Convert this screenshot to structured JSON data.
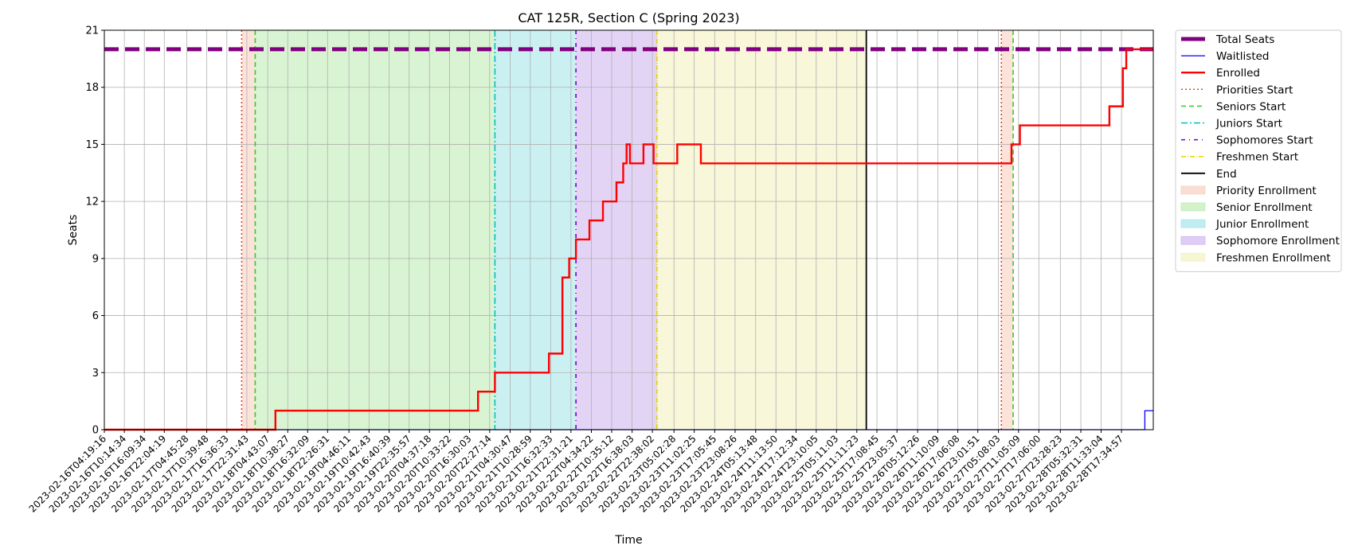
{
  "chart_data": {
    "type": "line",
    "title": "CAT 125R, Section C (Spring 2023)",
    "xlabel": "Time",
    "ylabel": "Seats",
    "ylim": [
      0,
      21
    ],
    "yticks": [
      0,
      3,
      6,
      9,
      12,
      15,
      18,
      21
    ],
    "xlim": [
      "2023-02-16T04:19:16",
      "2023-03-01T03:00:00"
    ],
    "grid": true,
    "legend_position": "outside-right",
    "x_tick_labels": [
      "2023-02-16T04:19:16",
      "2023-02-16T10:14:34",
      "2023-02-16T16:09:34",
      "2023-02-16T22:04:19",
      "2023-02-17T04:45:28",
      "2023-02-17T10:39:48",
      "2023-02-17T16:36:33",
      "2023-02-17T22:31:43",
      "2023-02-18T04:43:07",
      "2023-02-18T10:38:27",
      "2023-02-18T16:32:09",
      "2023-02-18T22:26:31",
      "2023-02-19T04:46:11",
      "2023-02-19T10:42:43",
      "2023-02-19T16:40:39",
      "2023-02-19T22:35:57",
      "2023-02-20T04:37:18",
      "2023-02-20T10:33:22",
      "2023-02-20T16:30:03",
      "2023-02-20T22:27:14",
      "2023-02-21T04:30:47",
      "2023-02-21T10:28:59",
      "2023-02-21T16:32:33",
      "2023-02-21T22:31:21",
      "2023-02-22T04:34:22",
      "2023-02-22T10:35:12",
      "2023-02-22T16:38:03",
      "2023-02-22T22:38:02",
      "2023-02-23T05:02:28",
      "2023-02-23T11:02:25",
      "2023-02-23T17:05:45",
      "2023-02-23T23:08:26",
      "2023-02-24T05:13:48",
      "2023-02-24T11:13:50",
      "2023-02-24T17:12:34",
      "2023-02-24T23:10:05",
      "2023-02-25T05:11:03",
      "2023-02-25T11:11:23",
      "2023-02-25T17:08:45",
      "2023-02-25T23:05:37",
      "2023-02-26T05:12:26",
      "2023-02-26T11:10:09",
      "2023-02-26T17:06:08",
      "2023-02-26T23:01:51",
      "2023-02-27T05:08:03",
      "2023-02-27T11:05:09",
      "2023-02-27T17:06:00",
      "2023-02-27T23:28:23",
      "2023-02-28T05:32:31",
      "2023-02-28T11:33:04",
      "2023-02-28T17:34:57"
    ],
    "periods": [
      {
        "name": "Priority Enrollment",
        "start": "2023-02-17T21:00:00",
        "end": "2023-02-18T01:00:00",
        "color": "#f8d0c0"
      },
      {
        "name": "Senior Enrollment",
        "start": "2023-02-18T01:00:00",
        "end": "2023-02-21T00:00:00",
        "color": "#c0ecb4"
      },
      {
        "name": "Junior Enrollment",
        "start": "2023-02-21T00:00:00",
        "end": "2023-02-22T00:00:00",
        "color": "#a8e6ea"
      },
      {
        "name": "Sophomore Enrollment",
        "start": "2023-02-22T00:00:00",
        "end": "2023-02-23T00:00:00",
        "color": "#d0b8f0"
      },
      {
        "name": "Freshmen Enrollment",
        "start": "2023-02-23T00:00:00",
        "end": "2023-02-25T14:00:00",
        "color": "#f4f2c0"
      },
      {
        "name": "Priority Enrollment",
        "start": "2023-02-27T06:00:00",
        "end": "2023-02-27T09:30:00",
        "color": "#f8d0c0"
      }
    ],
    "markers": [
      {
        "name": "Priorities Start",
        "time": "2023-02-17T21:00:00",
        "color": "#e8402a",
        "dash": "2,3",
        "legend": true
      },
      {
        "name": "Seniors Start",
        "time": "2023-02-18T01:00:00",
        "color": "#2ecc2e",
        "dash": "6,4",
        "legend": true
      },
      {
        "name": "Juniors Start",
        "time": "2023-02-21T00:00:00",
        "color": "#00bfc4",
        "dash": "8,3,2,3",
        "legend": true
      },
      {
        "name": "Sophomores Start",
        "time": "2023-02-22T00:00:00",
        "color": "#6a00e0",
        "dash": "5,5,1,5",
        "legend": true
      },
      {
        "name": "Freshmen Start",
        "time": "2023-02-23T00:00:00",
        "color": "#e8d400",
        "dash": "6,2,1,2",
        "legend": true
      },
      {
        "name": "End",
        "time": "2023-02-25T14:00:00",
        "color": "#000000",
        "dash": "",
        "legend": true
      },
      {
        "name": "Priorities Start",
        "time": "2023-02-27T06:00:00",
        "color": "#e8402a",
        "dash": "2,3",
        "legend": false
      },
      {
        "name": "Seniors Start",
        "time": "2023-02-27T09:30:00",
        "color": "#2ecc2e",
        "dash": "6,4",
        "legend": false
      }
    ],
    "series": [
      {
        "name": "Total Seats",
        "color": "#800080",
        "style": "dashed-thick",
        "points": [
          [
            "2023-02-16T04:19:16",
            20
          ],
          [
            "2023-03-01T03:00:00",
            20
          ]
        ]
      },
      {
        "name": "Waitlisted",
        "color": "#0000ff",
        "style": "step",
        "points": [
          [
            "2023-02-16T04:19:16",
            0
          ],
          [
            "2023-03-01T00:30:00",
            0
          ],
          [
            "2023-03-01T00:30:01",
            1
          ],
          [
            "2023-03-01T03:00:00",
            1
          ]
        ]
      },
      {
        "name": "Enrolled",
        "color": "#ff0000",
        "style": "step",
        "points": [
          [
            "2023-02-16T04:19:16",
            0
          ],
          [
            "2023-02-18T07:00:00",
            1
          ],
          [
            "2023-02-20T19:00:00",
            2
          ],
          [
            "2023-02-21T00:00:00",
            3
          ],
          [
            "2023-02-21T10:00:00",
            3
          ],
          [
            "2023-02-21T16:00:00",
            4
          ],
          [
            "2023-02-21T20:00:00",
            8
          ],
          [
            "2023-02-21T22:00:00",
            9
          ],
          [
            "2023-02-22T00:00:00",
            10
          ],
          [
            "2023-02-22T04:00:00",
            11
          ],
          [
            "2023-02-22T08:00:00",
            12
          ],
          [
            "2023-02-22T10:00:00",
            12
          ],
          [
            "2023-02-22T12:00:00",
            13
          ],
          [
            "2023-02-22T14:00:00",
            14
          ],
          [
            "2023-02-22T15:00:00",
            15
          ],
          [
            "2023-02-22T16:00:00",
            14
          ],
          [
            "2023-02-22T20:00:00",
            15
          ],
          [
            "2023-02-22T23:00:00",
            14
          ],
          [
            "2023-02-23T06:00:00",
            15
          ],
          [
            "2023-02-23T13:00:00",
            14
          ],
          [
            "2023-02-27T09:00:00",
            15
          ],
          [
            "2023-02-27T11:30:00",
            16
          ],
          [
            "2023-02-28T14:00:00",
            17
          ],
          [
            "2023-02-28T18:00:00",
            19
          ],
          [
            "2023-02-28T19:00:00",
            20
          ],
          [
            "2023-03-01T03:00:00",
            20
          ]
        ]
      }
    ],
    "legend": [
      {
        "label": "Total Seats",
        "kind": "line",
        "color": "#800080",
        "dash": "",
        "width": 5
      },
      {
        "label": "Waitlisted",
        "kind": "line",
        "color": "#0000ff",
        "dash": "",
        "width": 1.2
      },
      {
        "label": "Enrolled",
        "kind": "line",
        "color": "#ff0000",
        "dash": "",
        "width": 2.4
      },
      {
        "label": "Priorities Start",
        "kind": "line",
        "color": "#e8402a",
        "dash": "2,3",
        "width": 1.5
      },
      {
        "label": "Seniors Start",
        "kind": "line",
        "color": "#2ecc2e",
        "dash": "6,4",
        "width": 1.5
      },
      {
        "label": "Juniors Start",
        "kind": "line",
        "color": "#00bfc4",
        "dash": "8,3,2,3",
        "width": 1.5
      },
      {
        "label": "Sophomores Start",
        "kind": "line",
        "color": "#6a00e0",
        "dash": "5,5,1,5",
        "width": 1.5
      },
      {
        "label": "Freshmen Start",
        "kind": "line",
        "color": "#e8d400",
        "dash": "6,2,1,2",
        "width": 1.5
      },
      {
        "label": "End",
        "kind": "line",
        "color": "#000000",
        "dash": "",
        "width": 1.8
      },
      {
        "label": "Priority Enrollment",
        "kind": "patch",
        "color": "#f8d0c0"
      },
      {
        "label": "Senior Enrollment",
        "kind": "patch",
        "color": "#c0ecb4"
      },
      {
        "label": "Junior Enrollment",
        "kind": "patch",
        "color": "#a8e6ea"
      },
      {
        "label": "Sophomore Enrollment",
        "kind": "patch",
        "color": "#d0b8f0"
      },
      {
        "label": "Freshmen Enrollment",
        "kind": "patch",
        "color": "#f4f2c0"
      }
    ]
  }
}
